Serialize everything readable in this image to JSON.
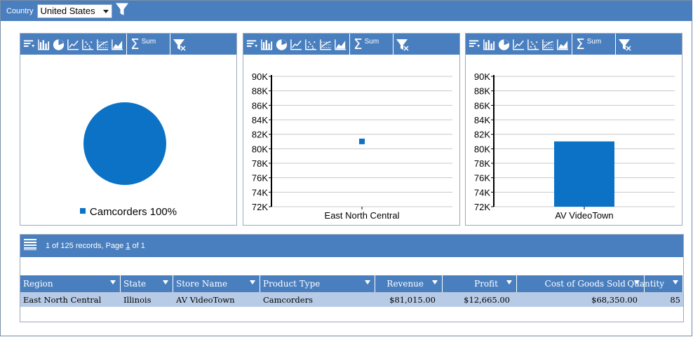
{
  "filter": {
    "label": "Country",
    "selected": "United States"
  },
  "toolbar": {
    "sum_label": "Sum"
  },
  "panels": [
    {
      "type": "pie",
      "legend": "Camcorders 100%"
    },
    {
      "type": "scatter",
      "y_ticks": [
        "90K",
        "88K",
        "86K",
        "84K",
        "82K",
        "80K",
        "78K",
        "76K",
        "74K",
        "72K"
      ],
      "category": "East North Central"
    },
    {
      "type": "bar",
      "y_ticks": [
        "90K",
        "88K",
        "86K",
        "84K",
        "82K",
        "80K",
        "78K",
        "76K",
        "74K",
        "72K"
      ],
      "category": "AV VideoTown"
    }
  ],
  "chart_data": [
    {
      "type": "pie",
      "categories": [
        "Camcorders"
      ],
      "values": [
        100
      ],
      "legend_labels": [
        "Camcorders 100%"
      ]
    },
    {
      "type": "scatter",
      "categories": [
        "East North Central"
      ],
      "values": [
        81015
      ],
      "ylim": [
        72000,
        90000
      ]
    },
    {
      "type": "bar",
      "categories": [
        "AV VideoTown"
      ],
      "values": [
        81015
      ],
      "ylim": [
        72000,
        90000
      ]
    }
  ],
  "grid": {
    "info_prefix": "1 of 125 records, Page ",
    "page": "1",
    "info_suffix": " of 1",
    "columns": [
      "Region",
      "State",
      "Store Name",
      "Product Type",
      "Revenue",
      "Profit",
      "Cost of Goods Sold",
      "Quantity"
    ],
    "rows": [
      [
        "East North Central",
        "Illinois",
        "AV VideoTown",
        "Camcorders",
        "$81,015.00",
        "$12,665.00",
        "$68,350.00",
        "85"
      ]
    ]
  },
  "colors": {
    "header_blue": "#4a7fbf",
    "series_blue": "#0b72c6",
    "row_highlight": "#b8cbe6"
  }
}
